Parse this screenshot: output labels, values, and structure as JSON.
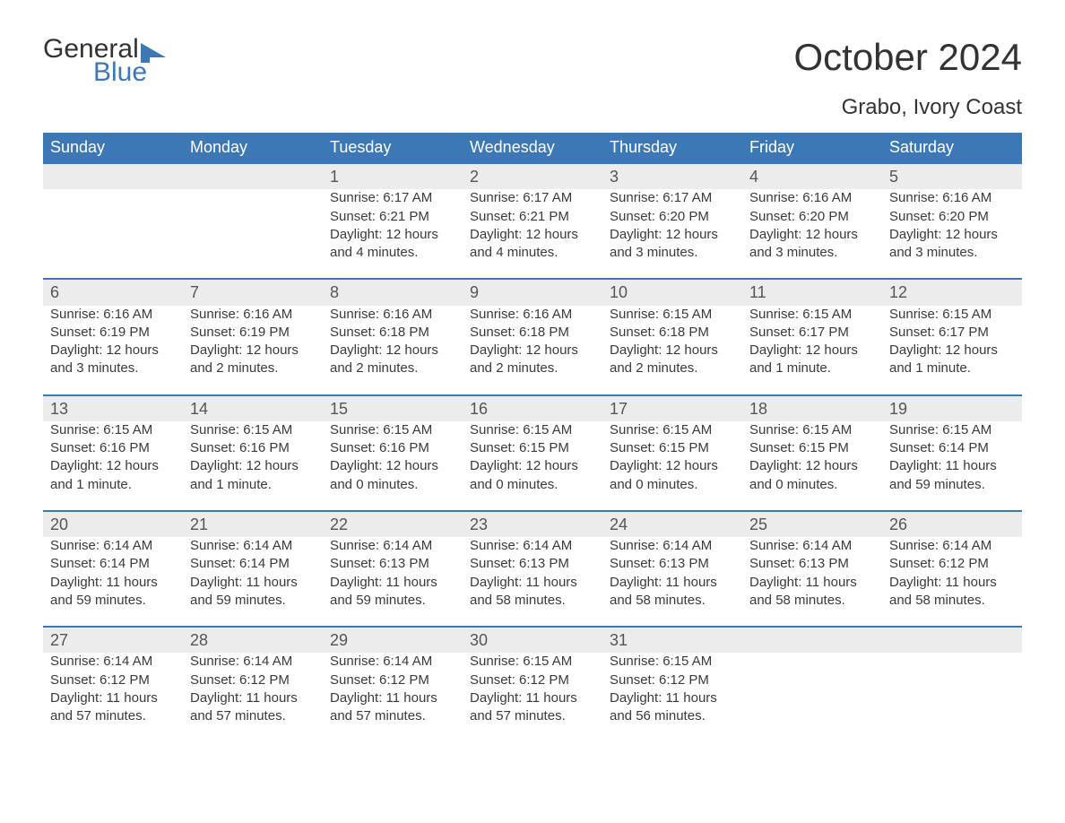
{
  "brand": {
    "line1": "General",
    "line2": "Blue",
    "accent": "#3b78b5"
  },
  "title": "October 2024",
  "location": "Grabo, Ivory Coast",
  "colors": {
    "header_bg": "#3b78b5",
    "header_fg": "#ffffff",
    "daynum_bg": "#ececec",
    "row_border": "#3b78b5",
    "text": "#333333",
    "background": "#ffffff"
  },
  "dayNames": [
    "Sunday",
    "Monday",
    "Tuesday",
    "Wednesday",
    "Thursday",
    "Friday",
    "Saturday"
  ],
  "layout": {
    "first_day_column": 2,
    "days_in_month": 31
  },
  "days": [
    {
      "n": 1,
      "sunrise": "6:17 AM",
      "sunset": "6:21 PM",
      "daylight": "12 hours and 4 minutes."
    },
    {
      "n": 2,
      "sunrise": "6:17 AM",
      "sunset": "6:21 PM",
      "daylight": "12 hours and 4 minutes."
    },
    {
      "n": 3,
      "sunrise": "6:17 AM",
      "sunset": "6:20 PM",
      "daylight": "12 hours and 3 minutes."
    },
    {
      "n": 4,
      "sunrise": "6:16 AM",
      "sunset": "6:20 PM",
      "daylight": "12 hours and 3 minutes."
    },
    {
      "n": 5,
      "sunrise": "6:16 AM",
      "sunset": "6:20 PM",
      "daylight": "12 hours and 3 minutes."
    },
    {
      "n": 6,
      "sunrise": "6:16 AM",
      "sunset": "6:19 PM",
      "daylight": "12 hours and 3 minutes."
    },
    {
      "n": 7,
      "sunrise": "6:16 AM",
      "sunset": "6:19 PM",
      "daylight": "12 hours and 2 minutes."
    },
    {
      "n": 8,
      "sunrise": "6:16 AM",
      "sunset": "6:18 PM",
      "daylight": "12 hours and 2 minutes."
    },
    {
      "n": 9,
      "sunrise": "6:16 AM",
      "sunset": "6:18 PM",
      "daylight": "12 hours and 2 minutes."
    },
    {
      "n": 10,
      "sunrise": "6:15 AM",
      "sunset": "6:18 PM",
      "daylight": "12 hours and 2 minutes."
    },
    {
      "n": 11,
      "sunrise": "6:15 AM",
      "sunset": "6:17 PM",
      "daylight": "12 hours and 1 minute."
    },
    {
      "n": 12,
      "sunrise": "6:15 AM",
      "sunset": "6:17 PM",
      "daylight": "12 hours and 1 minute."
    },
    {
      "n": 13,
      "sunrise": "6:15 AM",
      "sunset": "6:16 PM",
      "daylight": "12 hours and 1 minute."
    },
    {
      "n": 14,
      "sunrise": "6:15 AM",
      "sunset": "6:16 PM",
      "daylight": "12 hours and 1 minute."
    },
    {
      "n": 15,
      "sunrise": "6:15 AM",
      "sunset": "6:16 PM",
      "daylight": "12 hours and 0 minutes."
    },
    {
      "n": 16,
      "sunrise": "6:15 AM",
      "sunset": "6:15 PM",
      "daylight": "12 hours and 0 minutes."
    },
    {
      "n": 17,
      "sunrise": "6:15 AM",
      "sunset": "6:15 PM",
      "daylight": "12 hours and 0 minutes."
    },
    {
      "n": 18,
      "sunrise": "6:15 AM",
      "sunset": "6:15 PM",
      "daylight": "12 hours and 0 minutes."
    },
    {
      "n": 19,
      "sunrise": "6:15 AM",
      "sunset": "6:14 PM",
      "daylight": "11 hours and 59 minutes."
    },
    {
      "n": 20,
      "sunrise": "6:14 AM",
      "sunset": "6:14 PM",
      "daylight": "11 hours and 59 minutes."
    },
    {
      "n": 21,
      "sunrise": "6:14 AM",
      "sunset": "6:14 PM",
      "daylight": "11 hours and 59 minutes."
    },
    {
      "n": 22,
      "sunrise": "6:14 AM",
      "sunset": "6:13 PM",
      "daylight": "11 hours and 59 minutes."
    },
    {
      "n": 23,
      "sunrise": "6:14 AM",
      "sunset": "6:13 PM",
      "daylight": "11 hours and 58 minutes."
    },
    {
      "n": 24,
      "sunrise": "6:14 AM",
      "sunset": "6:13 PM",
      "daylight": "11 hours and 58 minutes."
    },
    {
      "n": 25,
      "sunrise": "6:14 AM",
      "sunset": "6:13 PM",
      "daylight": "11 hours and 58 minutes."
    },
    {
      "n": 26,
      "sunrise": "6:14 AM",
      "sunset": "6:12 PM",
      "daylight": "11 hours and 58 minutes."
    },
    {
      "n": 27,
      "sunrise": "6:14 AM",
      "sunset": "6:12 PM",
      "daylight": "11 hours and 57 minutes."
    },
    {
      "n": 28,
      "sunrise": "6:14 AM",
      "sunset": "6:12 PM",
      "daylight": "11 hours and 57 minutes."
    },
    {
      "n": 29,
      "sunrise": "6:14 AM",
      "sunset": "6:12 PM",
      "daylight": "11 hours and 57 minutes."
    },
    {
      "n": 30,
      "sunrise": "6:15 AM",
      "sunset": "6:12 PM",
      "daylight": "11 hours and 57 minutes."
    },
    {
      "n": 31,
      "sunrise": "6:15 AM",
      "sunset": "6:12 PM",
      "daylight": "11 hours and 56 minutes."
    }
  ],
  "labels": {
    "sunrise": "Sunrise:",
    "sunset": "Sunset:",
    "daylight": "Daylight:"
  }
}
